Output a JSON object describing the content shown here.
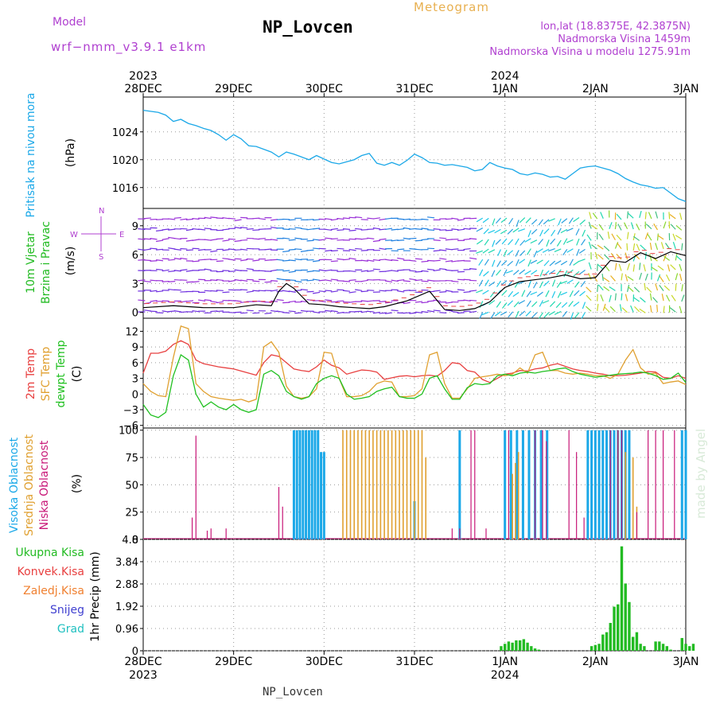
{
  "header": {
    "model_label": "Model",
    "model_name": "wrf−nmm_v3.9.1 e1km",
    "station": "NP_Lovcen",
    "meteogram": "Meteogram",
    "lonlat": "lon,lat (18.8375E, 42.3875N)",
    "elevation": "Nadmorska Visina 1459m",
    "model_elevation": "Nadmorska Visina u modelu 1275.91m",
    "footer_station": "NP_Lovcen",
    "made_by": "made by Angel"
  },
  "colors": {
    "pressure": "#1ba8e8",
    "wind_label": "#22bb22",
    "temp2m": "#e84040",
    "sfc": "#e0a030",
    "dewpt": "#20c020",
    "cloud_high": "#1ba8e8",
    "cloud_mid": "#e0a030",
    "cloud_low": "#c81878",
    "precip_total": "#22bb22",
    "precip_conv": "#e84040",
    "precip_frozen": "#f08030",
    "precip_snow": "#4040d0",
    "precip_hail": "#20c0c0",
    "direction": "#b040d0"
  },
  "time_axis": {
    "top_year_left": "2023",
    "top_year_right": "2024",
    "bottom_year_left": "2023",
    "bottom_year_right": "2024",
    "day_labels": [
      "28DEC",
      "29DEC",
      "30DEC",
      "31DEC",
      "1JAN",
      "2JAN",
      "3JAN"
    ],
    "hours": 144
  },
  "chart_data": [
    {
      "type": "line",
      "panel": "pressure",
      "ylabel": "Pritisak na nivou mora",
      "unit": "(hPa)",
      "yticks": [
        "1016",
        "1020",
        "1024"
      ],
      "ylim": [
        1013,
        1029
      ],
      "x_hours": [
        0,
        4,
        6,
        8,
        10,
        12,
        14,
        16,
        18,
        20,
        22,
        24,
        26,
        28,
        30,
        32,
        34,
        36,
        38,
        40,
        42,
        44,
        46,
        48,
        50,
        52,
        54,
        56,
        58,
        60,
        62,
        64,
        66,
        68,
        70,
        72,
        74,
        76,
        78,
        80,
        82,
        84,
        86,
        88,
        90,
        92,
        94,
        96,
        98,
        100,
        102,
        104,
        106,
        108,
        110,
        112,
        114,
        116,
        118,
        120,
        122,
        124,
        126,
        128,
        130,
        132,
        134,
        136,
        138,
        140,
        142,
        144
      ],
      "values": [
        1027.1,
        1026.8,
        1026.4,
        1025.5,
        1025.8,
        1025.2,
        1024.9,
        1024.5,
        1024.2,
        1023.6,
        1022.8,
        1023.6,
        1023.0,
        1022.0,
        1021.9,
        1021.5,
        1021.1,
        1020.4,
        1021.1,
        1020.8,
        1020.4,
        1020.0,
        1020.6,
        1020.1,
        1019.6,
        1019.4,
        1019.7,
        1020.0,
        1020.6,
        1020.9,
        1019.5,
        1019.2,
        1019.6,
        1019.2,
        1019.9,
        1020.8,
        1020.3,
        1019.6,
        1019.5,
        1019.2,
        1019.3,
        1019.1,
        1018.9,
        1018.4,
        1018.6,
        1019.6,
        1019.1,
        1018.8,
        1018.6,
        1018.0,
        1017.8,
        1018.1,
        1017.9,
        1017.5,
        1017.6,
        1017.2,
        1018.0,
        1018.8,
        1019.0,
        1019.1,
        1018.8,
        1018.5,
        1018.0,
        1017.3,
        1016.8,
        1016.4,
        1016.2,
        1015.9,
        1016.0,
        1015.2,
        1014.4,
        1014.0
      ]
    },
    {
      "type": "line",
      "panel": "wind",
      "ylabel": "10m Vjetar Brzina i Pravac",
      "ylabel_line1": "10m Vjetar",
      "ylabel_line2": "Brzina i Pravac",
      "unit": "(m/s)",
      "direction_legend": {
        "n": "N",
        "w": "W",
        "e": "E",
        "s": "S"
      },
      "yticks": [
        "0",
        "3",
        "6",
        "9"
      ],
      "ylim": [
        -0.6,
        10.8
      ],
      "x_hours": [
        0,
        8,
        16,
        24,
        30,
        34,
        36,
        38,
        40,
        44,
        48,
        52,
        56,
        60,
        64,
        70,
        76,
        80,
        84,
        88,
        92,
        96,
        100,
        104,
        108,
        112,
        116,
        120,
        124,
        128,
        132,
        136,
        140,
        144
      ],
      "values": [
        0.5,
        0.7,
        0.5,
        0.5,
        0.8,
        0.7,
        2.2,
        3.0,
        2.5,
        0.9,
        0.8,
        0.6,
        0.5,
        0.4,
        0.6,
        1.2,
        2.2,
        0.3,
        0.2,
        0.4,
        1.1,
        2.6,
        3.2,
        3.4,
        3.6,
        3.9,
        3.5,
        3.6,
        5.4,
        5.2,
        6.2,
        5.6,
        6.3,
        5.9
      ]
    },
    {
      "type": "line",
      "panel": "temperature",
      "ylabels": [
        "2m Temp",
        "SFC Temp",
        "dewpt Temp"
      ],
      "unit": "(C)",
      "yticks": [
        "−6",
        "−3",
        "0",
        "3",
        "6",
        "9",
        "12"
      ],
      "ylim": [
        -6.5,
        14.5
      ],
      "x_hours": [
        0,
        2,
        4,
        6,
        8,
        10,
        12,
        14,
        16,
        18,
        20,
        22,
        24,
        26,
        28,
        30,
        32,
        34,
        36,
        38,
        40,
        42,
        44,
        46,
        48,
        50,
        52,
        54,
        56,
        58,
        60,
        62,
        64,
        66,
        68,
        70,
        72,
        74,
        76,
        78,
        80,
        82,
        84,
        86,
        88,
        90,
        92,
        94,
        96,
        98,
        100,
        102,
        104,
        106,
        108,
        110,
        112,
        114,
        116,
        118,
        120,
        122,
        124,
        126,
        128,
        130,
        132,
        134,
        136,
        138,
        140,
        142,
        144
      ],
      "series": [
        {
          "name": "2m Temp",
          "values": [
            4.0,
            7.8,
            7.8,
            8.2,
            9.5,
            10.2,
            9.5,
            6.5,
            5.8,
            5.5,
            5.2,
            5.0,
            4.8,
            4.4,
            4.0,
            3.6,
            6.0,
            7.5,
            7.2,
            6.0,
            4.8,
            4.5,
            4.3,
            5.2,
            6.5,
            5.5,
            5.0,
            3.8,
            4.2,
            4.6,
            4.5,
            4.2,
            2.8,
            3.1,
            3.4,
            3.5,
            3.3,
            3.5,
            3.6,
            3.4,
            4.5,
            6.0,
            5.8,
            4.5,
            4.2,
            2.8,
            2.2,
            3.0,
            3.8,
            4.0,
            4.5,
            4.4,
            4.8,
            5.0,
            5.5,
            5.8,
            5.3,
            4.8,
            4.5,
            4.3,
            4.0,
            3.8,
            3.5,
            3.5,
            3.6,
            3.8,
            4.0,
            4.3,
            4.2,
            3.2,
            3.0,
            3.5,
            3.0
          ]
        },
        {
          "name": "SFC Temp",
          "values": [
            2.0,
            0.5,
            -0.3,
            -0.5,
            7.0,
            13.0,
            12.5,
            2.0,
            0.5,
            -0.5,
            -0.8,
            -1.0,
            -1.2,
            -1.0,
            -1.5,
            -1.0,
            9.0,
            10.0,
            8.0,
            1.5,
            -0.5,
            -0.8,
            -0.5,
            1.0,
            8.0,
            7.8,
            3.0,
            -0.5,
            -0.5,
            -0.3,
            0.5,
            2.0,
            2.5,
            2.3,
            -0.5,
            -0.5,
            -0.3,
            1.0,
            7.5,
            8.0,
            2.0,
            -0.8,
            -0.8,
            1.0,
            3.0,
            3.3,
            3.5,
            3.8,
            3.5,
            3.8,
            5.0,
            4.0,
            7.5,
            8.0,
            4.5,
            4.5,
            4.0,
            3.8,
            4.0,
            3.8,
            3.5,
            3.5,
            3.0,
            3.8,
            6.5,
            8.5,
            5.0,
            3.8,
            4.0,
            2.0,
            2.3,
            2.5,
            1.8
          ]
        },
        {
          "name": "dewpt Temp",
          "values": [
            -2.0,
            -4.0,
            -4.5,
            -3.5,
            3.5,
            7.5,
            6.5,
            0.0,
            -2.5,
            -1.5,
            -2.5,
            -3.0,
            -2.0,
            -3.0,
            -3.5,
            -3.0,
            3.8,
            4.5,
            3.5,
            0.5,
            -0.5,
            -1.0,
            -0.5,
            2.0,
            3.0,
            3.5,
            3.0,
            0.0,
            -1.0,
            -0.8,
            -0.5,
            0.5,
            1.0,
            1.3,
            -0.5,
            -0.8,
            -0.8,
            0.0,
            3.0,
            3.5,
            1.0,
            -1.0,
            -1.0,
            1.2,
            2.0,
            1.8,
            2.0,
            3.5,
            3.8,
            3.5,
            4.0,
            4.2,
            4.0,
            4.3,
            4.5,
            4.8,
            5.0,
            4.3,
            3.8,
            3.5,
            3.2,
            3.4,
            3.6,
            3.8,
            3.9,
            4.0,
            4.2,
            4.0,
            3.5,
            2.8,
            3.0,
            4.0,
            2.2
          ]
        }
      ]
    },
    {
      "type": "bar",
      "panel": "cloud",
      "ylabels": [
        "Visoka Oblacnost",
        "Srednja Oblacnost",
        "Niska Oblacnost"
      ],
      "unit": "(%)",
      "yticks": [
        "0",
        "25",
        "50",
        "75",
        "100"
      ],
      "ylim": [
        0,
        102
      ],
      "series": [
        {
          "name": "Visoka Oblacnost",
          "bars": [
            [
              40,
              100
            ],
            [
              40.8,
              100
            ],
            [
              41.6,
              100
            ],
            [
              42.4,
              100
            ],
            [
              43.2,
              100
            ],
            [
              44,
              100
            ],
            [
              44.8,
              100
            ],
            [
              45.6,
              100
            ],
            [
              46.4,
              100
            ],
            [
              47.2,
              80
            ],
            [
              48,
              80
            ],
            [
              72,
              35
            ],
            [
              84,
              100
            ],
            [
              96,
              100
            ],
            [
              97.6,
              100
            ],
            [
              99.2,
              100
            ],
            [
              100.8,
              100
            ],
            [
              102.4,
              100
            ],
            [
              104,
              100
            ],
            [
              105.6,
              100
            ],
            [
              107.2,
              100
            ],
            [
              118,
              100
            ],
            [
              119,
              100
            ],
            [
              120,
              100
            ],
            [
              121,
              100
            ],
            [
              122,
              100
            ],
            [
              123,
              100
            ],
            [
              124,
              100
            ],
            [
              125,
              100
            ],
            [
              126,
              100
            ],
            [
              127,
              100
            ],
            [
              128,
              100
            ],
            [
              129,
              100
            ],
            [
              143,
              100
            ],
            [
              144,
              100
            ]
          ]
        },
        {
          "name": "Srednja Oblacnost",
          "bars": [
            [
              53,
              100
            ],
            [
              54,
              100
            ],
            [
              55,
              100
            ],
            [
              56,
              100
            ],
            [
              57,
              100
            ],
            [
              58,
              100
            ],
            [
              59,
              100
            ],
            [
              60,
              100
            ],
            [
              61,
              100
            ],
            [
              62,
              100
            ],
            [
              63,
              100
            ],
            [
              64,
              100
            ],
            [
              65,
              100
            ],
            [
              66,
              100
            ],
            [
              67,
              100
            ],
            [
              68,
              100
            ],
            [
              69,
              100
            ],
            [
              70,
              100
            ],
            [
              71,
              100
            ],
            [
              72,
              100
            ],
            [
              73,
              100
            ],
            [
              74,
              100
            ],
            [
              75,
              75
            ],
            [
              98,
              60
            ],
            [
              98.8,
              70
            ],
            [
              99.6,
              80
            ],
            [
              126,
              100
            ],
            [
              128,
              80
            ],
            [
              130,
              75
            ],
            [
              131,
              30
            ]
          ]
        },
        {
          "name": "Niska Oblacnost",
          "bars": [
            [
              13,
              20
            ],
            [
              14,
              95
            ],
            [
              17,
              8
            ],
            [
              18,
              10
            ],
            [
              22,
              10
            ],
            [
              36,
              48
            ],
            [
              37,
              30
            ],
            [
              82,
              10
            ],
            [
              84,
              10
            ],
            [
              87,
              100
            ],
            [
              88,
              100
            ],
            [
              91,
              10
            ],
            [
              97,
              100
            ],
            [
              104,
              100
            ],
            [
              106,
              100
            ],
            [
              107,
              90
            ],
            [
              113,
              100
            ],
            [
              115,
              80
            ],
            [
              117,
              20
            ],
            [
              124,
              100
            ],
            [
              126,
              100
            ],
            [
              127,
              100
            ],
            [
              131,
              25
            ],
            [
              134,
              100
            ],
            [
              136,
              100
            ],
            [
              138,
              100
            ],
            [
              141,
              100
            ]
          ]
        }
      ]
    },
    {
      "type": "bar",
      "panel": "precipitation",
      "ylabel": "1hr Precip (mm)",
      "legend": [
        "Ukupna Kisa",
        "Konvek.Kisa",
        "Zaledj.Kisa",
        "Snijeg",
        "Grad"
      ],
      "yticks": [
        "0",
        "0.96",
        "1.92",
        "2.88",
        "3.84",
        "4.8"
      ],
      "ylim": [
        0,
        4.8
      ],
      "series": [
        {
          "name": "Ukupna Kisa",
          "bars": [
            [
              95,
              0.2
            ],
            [
              96,
              0.3
            ],
            [
              97,
              0.4
            ],
            [
              98,
              0.35
            ],
            [
              99,
              0.45
            ],
            [
              100,
              0.45
            ],
            [
              101,
              0.5
            ],
            [
              102,
              0.35
            ],
            [
              103,
              0.2
            ],
            [
              104,
              0.1
            ],
            [
              105,
              0.05
            ],
            [
              119,
              0.2
            ],
            [
              120,
              0.25
            ],
            [
              121,
              0.3
            ],
            [
              122,
              0.7
            ],
            [
              123,
              0.8
            ],
            [
              124,
              1.2
            ],
            [
              125,
              1.9
            ],
            [
              126,
              2.0
            ],
            [
              127,
              4.5
            ],
            [
              128,
              2.9
            ],
            [
              129,
              2.1
            ],
            [
              130,
              0.6
            ],
            [
              131,
              0.8
            ],
            [
              132,
              0.3
            ],
            [
              133,
              0.2
            ],
            [
              136,
              0.4
            ],
            [
              137,
              0.4
            ],
            [
              138,
              0.3
            ],
            [
              139,
              0.2
            ],
            [
              140,
              0.05
            ],
            [
              143,
              0.55
            ],
            [
              144,
              0.3
            ],
            [
              145,
              0.2
            ],
            [
              146,
              0.3
            ]
          ]
        }
      ]
    }
  ]
}
